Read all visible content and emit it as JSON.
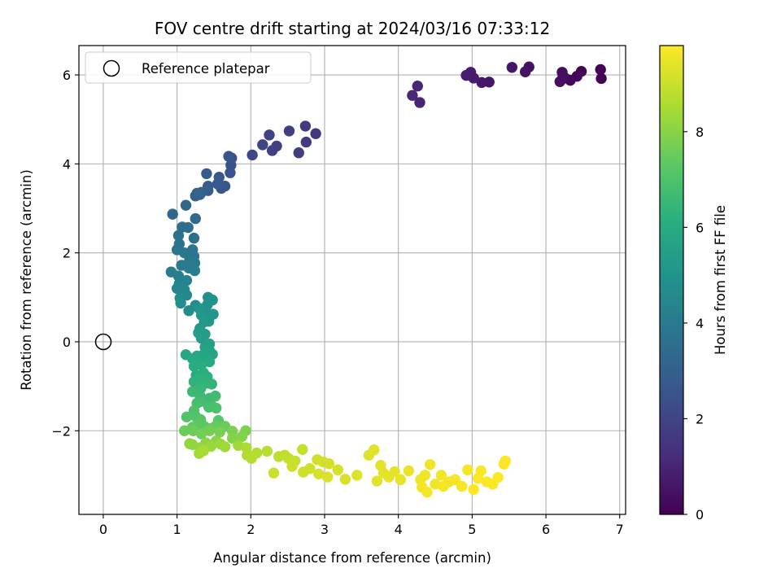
{
  "chart_data": {
    "type": "scatter",
    "title": "FOV centre drift starting at 2024/03/16 07:33:12",
    "xlabel": "Angular distance from reference (arcmin)",
    "ylabel": "Rotation from reference (arcmin)",
    "xlim": [
      -0.33,
      7.08
    ],
    "ylim": [
      -3.88,
      6.66
    ],
    "xticks": [
      0,
      1,
      2,
      3,
      4,
      5,
      6,
      7
    ],
    "yticks": [
      -2,
      0,
      2,
      4,
      6
    ],
    "grid": true,
    "legend": {
      "position": "top-left",
      "entries": [
        "Reference platepar"
      ]
    },
    "reference_point": {
      "x": 0,
      "y": 0
    },
    "colorbar": {
      "label": "Hours from first FF file",
      "range": [
        0,
        9.8
      ],
      "ticks": [
        0,
        2,
        4,
        6,
        8
      ],
      "colormap": "viridis"
    },
    "series": [
      {
        "points": [
          [
            6.75,
            5.92,
            0.0
          ],
          [
            6.74,
            6.12,
            0.05
          ],
          [
            6.48,
            6.08,
            0.1
          ],
          [
            6.42,
            5.97,
            0.15
          ],
          [
            6.33,
            5.88,
            0.2
          ],
          [
            6.26,
            5.93,
            0.25
          ],
          [
            6.22,
            6.06,
            0.3
          ],
          [
            6.19,
            5.85,
            0.35
          ],
          [
            6.23,
            5.96,
            0.4
          ],
          [
            5.77,
            6.18,
            0.45
          ],
          [
            5.72,
            6.07,
            0.5
          ],
          [
            5.54,
            6.17,
            0.55
          ],
          [
            5.23,
            5.84,
            0.6
          ],
          [
            5.13,
            5.83,
            0.65
          ],
          [
            5.02,
            5.93,
            0.7
          ],
          [
            4.98,
            6.06,
            0.75
          ],
          [
            4.92,
            5.99,
            0.8
          ],
          [
            4.29,
            5.38,
            1.0
          ],
          [
            4.26,
            5.75,
            1.05
          ],
          [
            4.19,
            5.54,
            1.1
          ],
          [
            2.88,
            4.68,
            1.6
          ],
          [
            2.74,
            4.85,
            1.65
          ],
          [
            2.75,
            4.49,
            1.7
          ],
          [
            2.65,
            4.25,
            1.75
          ],
          [
            2.52,
            4.74,
            1.8
          ],
          [
            2.35,
            4.4,
            1.85
          ],
          [
            2.29,
            4.3,
            1.9
          ],
          [
            2.25,
            4.65,
            1.95
          ],
          [
            2.16,
            4.43,
            2.0
          ],
          [
            2.02,
            4.2,
            2.05
          ],
          [
            1.74,
            4.13,
            2.4
          ],
          [
            1.73,
            3.97,
            2.45
          ],
          [
            1.72,
            3.8,
            2.5
          ],
          [
            1.7,
            4.17,
            2.55
          ],
          [
            1.65,
            3.5,
            2.6
          ],
          [
            1.6,
            3.45,
            2.65
          ],
          [
            1.57,
            3.7,
            2.7
          ],
          [
            1.55,
            3.55,
            2.75
          ],
          [
            1.42,
            3.5,
            2.8
          ],
          [
            1.4,
            3.78,
            2.85
          ],
          [
            1.42,
            3.4,
            2.9
          ],
          [
            1.31,
            3.31,
            2.95
          ],
          [
            1.27,
            3.34,
            3.0
          ],
          [
            1.33,
            3.36,
            3.05
          ],
          [
            1.25,
            3.28,
            3.1
          ],
          [
            1.12,
            3.07,
            3.2
          ],
          [
            0.94,
            2.87,
            3.25
          ],
          [
            1.25,
            2.77,
            3.3
          ],
          [
            1.07,
            2.58,
            3.45
          ],
          [
            1.15,
            2.57,
            3.5
          ],
          [
            1.02,
            2.39,
            3.55
          ],
          [
            1.23,
            2.33,
            3.6
          ],
          [
            1.03,
            2.2,
            3.65
          ],
          [
            1.21,
            2.07,
            3.7
          ],
          [
            1.0,
            2.07,
            3.75
          ],
          [
            1.1,
            2.0,
            3.8
          ],
          [
            1.23,
            1.92,
            3.85
          ],
          [
            1.17,
            1.84,
            3.9
          ],
          [
            1.24,
            1.77,
            3.95
          ],
          [
            1.06,
            1.72,
            4.0
          ],
          [
            1.16,
            1.66,
            4.05
          ],
          [
            1.24,
            1.6,
            4.1
          ],
          [
            0.92,
            1.57,
            4.15
          ],
          [
            1.02,
            1.48,
            4.2
          ],
          [
            1.13,
            1.38,
            4.3
          ],
          [
            1.03,
            1.31,
            4.35
          ],
          [
            1.0,
            1.2,
            4.45
          ],
          [
            1.1,
            1.17,
            4.5
          ],
          [
            1.13,
            1.05,
            4.6
          ],
          [
            1.04,
            0.98,
            4.65
          ],
          [
            1.05,
            0.87,
            4.7
          ],
          [
            1.25,
            0.82,
            4.75
          ],
          [
            1.16,
            0.7,
            4.8
          ],
          [
            1.42,
            1.0,
            4.85
          ],
          [
            1.48,
            0.94,
            4.9
          ],
          [
            1.41,
            0.83,
            4.95
          ],
          [
            1.39,
            0.69,
            5.0
          ],
          [
            1.3,
            0.75,
            5.05
          ],
          [
            1.49,
            0.62,
            5.1
          ],
          [
            1.33,
            0.6,
            5.15
          ],
          [
            1.43,
            0.46,
            5.2
          ],
          [
            1.37,
            0.45,
            5.25
          ],
          [
            1.31,
            0.3,
            5.3
          ],
          [
            1.29,
            0.2,
            5.35
          ],
          [
            1.33,
            0.08,
            5.4
          ],
          [
            1.38,
            0.17,
            5.45
          ],
          [
            1.44,
            -0.05,
            5.5
          ],
          [
            1.38,
            -0.12,
            5.55
          ],
          [
            1.44,
            -0.2,
            5.6
          ],
          [
            1.48,
            -0.28,
            5.65
          ],
          [
            1.35,
            -0.3,
            5.7
          ],
          [
            1.38,
            -0.35,
            5.75
          ],
          [
            1.27,
            -0.32,
            5.8
          ],
          [
            1.12,
            -0.29,
            5.85
          ],
          [
            1.21,
            -0.38,
            5.9
          ],
          [
            1.44,
            -0.45,
            5.95
          ],
          [
            1.33,
            -0.52,
            6.0
          ],
          [
            1.23,
            -0.55,
            6.05
          ],
          [
            1.26,
            -0.75,
            6.1
          ],
          [
            1.36,
            -0.7,
            6.15
          ],
          [
            1.41,
            -0.79,
            6.2
          ],
          [
            1.29,
            -0.85,
            6.25
          ],
          [
            1.23,
            -0.9,
            6.3
          ],
          [
            1.4,
            -0.93,
            6.35
          ],
          [
            1.47,
            -0.95,
            6.4
          ],
          [
            1.32,
            -1.05,
            6.45
          ],
          [
            1.26,
            -1.1,
            6.5
          ],
          [
            1.21,
            -1.12,
            6.55
          ],
          [
            1.31,
            -1.21,
            6.6
          ],
          [
            1.44,
            -1.27,
            6.65
          ],
          [
            1.52,
            -1.22,
            6.7
          ],
          [
            1.33,
            -1.34,
            6.75
          ],
          [
            1.27,
            -1.38,
            6.8
          ],
          [
            1.43,
            -1.47,
            6.85
          ],
          [
            1.48,
            -1.45,
            6.9
          ],
          [
            1.53,
            -1.49,
            6.95
          ],
          [
            1.23,
            -1.55,
            7.0
          ],
          [
            1.26,
            -1.69,
            7.05
          ],
          [
            1.13,
            -1.69,
            7.1
          ],
          [
            1.32,
            -1.75,
            7.15
          ],
          [
            1.56,
            -1.77,
            7.2
          ],
          [
            1.28,
            -1.87,
            7.25
          ],
          [
            1.37,
            -1.9,
            7.3
          ],
          [
            1.21,
            -1.92,
            7.35
          ],
          [
            1.43,
            -1.95,
            7.4
          ],
          [
            1.52,
            -1.9,
            7.45
          ],
          [
            1.65,
            -1.9,
            7.5
          ],
          [
            1.1,
            -2.0,
            7.55
          ],
          [
            1.22,
            -2.0,
            7.6
          ],
          [
            1.33,
            -2.07,
            7.65
          ],
          [
            1.44,
            -2.0,
            7.7
          ],
          [
            1.58,
            -2.03,
            7.75
          ],
          [
            1.75,
            -2.01,
            7.8
          ],
          [
            1.93,
            -2.0,
            7.85
          ],
          [
            1.88,
            -2.13,
            7.9
          ],
          [
            1.75,
            -2.17,
            7.95
          ],
          [
            1.53,
            -2.23,
            8.0
          ],
          [
            1.39,
            -2.27,
            8.05
          ],
          [
            1.17,
            -2.29,
            8.1
          ],
          [
            1.21,
            -2.31,
            8.15
          ],
          [
            1.31,
            -2.38,
            8.2
          ],
          [
            1.46,
            -2.35,
            8.25
          ],
          [
            1.59,
            -2.3,
            8.3
          ],
          [
            1.65,
            -2.36,
            8.35
          ],
          [
            1.83,
            -2.33,
            8.4
          ],
          [
            1.3,
            -2.51,
            8.45
          ],
          [
            1.36,
            -2.45,
            8.5
          ],
          [
            1.94,
            -2.38,
            8.55
          ],
          [
            1.95,
            -2.55,
            8.6
          ],
          [
            2.08,
            -2.5,
            8.65
          ],
          [
            2.01,
            -2.62,
            8.7
          ],
          [
            2.22,
            -2.46,
            8.75
          ],
          [
            2.38,
            -2.58,
            8.8
          ],
          [
            2.46,
            -2.55,
            8.85
          ],
          [
            2.51,
            -2.62,
            8.9
          ],
          [
            2.7,
            -2.42,
            8.95
          ],
          [
            2.6,
            -2.68,
            9.0
          ],
          [
            2.31,
            -2.95,
            9.0
          ],
          [
            2.56,
            -2.8,
            9.05
          ],
          [
            2.71,
            -2.93,
            9.05
          ],
          [
            2.8,
            -2.85,
            9.1
          ],
          [
            2.9,
            -2.65,
            9.1
          ],
          [
            2.98,
            -2.7,
            9.15
          ],
          [
            3.06,
            -2.74,
            9.15
          ],
          [
            2.92,
            -2.97,
            9.2
          ],
          [
            3.18,
            -2.88,
            9.2
          ],
          [
            3.04,
            -3.04,
            9.25
          ],
          [
            3.28,
            -3.09,
            9.25
          ],
          [
            3.44,
            -3.0,
            9.3
          ],
          [
            3.6,
            -2.55,
            9.3
          ],
          [
            3.67,
            -2.43,
            9.35
          ],
          [
            3.71,
            -3.13,
            9.35
          ],
          [
            3.76,
            -2.78,
            9.4
          ],
          [
            3.8,
            -2.95,
            9.4
          ],
          [
            3.87,
            -3.04,
            9.45
          ],
          [
            3.95,
            -2.92,
            9.45
          ],
          [
            4.03,
            -3.1,
            9.5
          ],
          [
            4.14,
            -2.9,
            9.5
          ],
          [
            4.3,
            -3.1,
            9.55
          ],
          [
            4.36,
            -3.0,
            9.55
          ],
          [
            4.43,
            -2.76,
            9.6
          ],
          [
            4.5,
            -3.2,
            9.6
          ],
          [
            4.58,
            -3.0,
            9.65
          ],
          [
            4.68,
            -3.15,
            9.65
          ],
          [
            4.77,
            -3.1,
            9.7
          ],
          [
            4.86,
            -3.25,
            9.7
          ],
          [
            4.94,
            -2.88,
            9.72
          ],
          [
            5.08,
            -3.07,
            9.74
          ],
          [
            5.12,
            -2.9,
            9.75
          ],
          [
            5.2,
            -3.15,
            9.76
          ],
          [
            5.28,
            -3.2,
            9.77
          ],
          [
            5.35,
            -3.05,
            9.78
          ],
          [
            5.43,
            -2.75,
            9.79
          ],
          [
            5.45,
            -2.68,
            9.8
          ],
          [
            5.02,
            -3.32,
            9.8
          ],
          [
            4.39,
            -3.38,
            9.7
          ],
          [
            4.32,
            -3.27,
            9.66
          ],
          [
            4.61,
            -3.25,
            9.68
          ]
        ]
      }
    ]
  }
}
